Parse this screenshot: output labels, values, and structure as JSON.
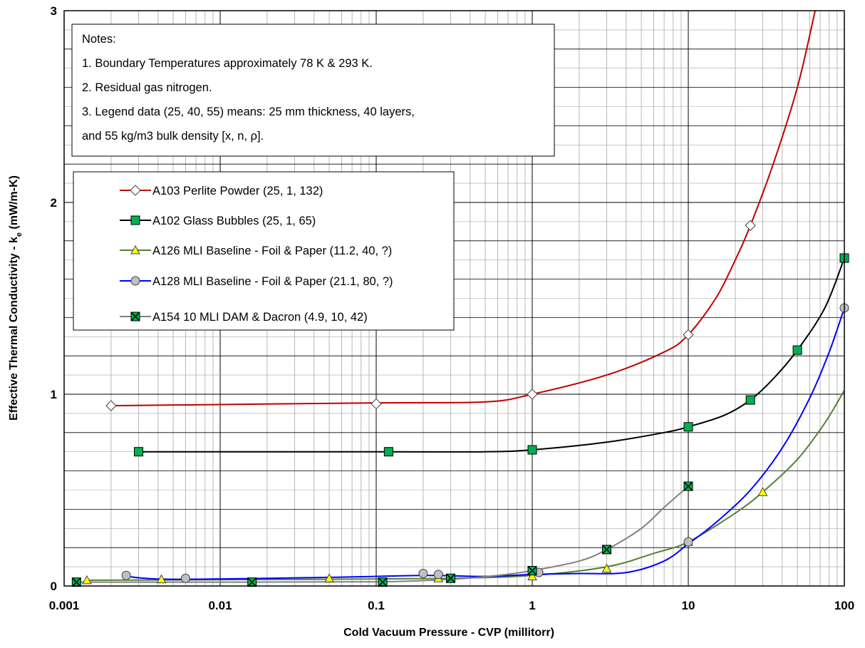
{
  "chart_data": {
    "type": "line",
    "xlabel": "Cold Vacuum Pressure - CVP (millitorr)",
    "ylabel": "Effective Thermal Conductivity - k",
    "ylabel_sub": "e",
    "ylabel_unit": " (mW/m-K)",
    "x_scale": "log",
    "xlim": [
      0.001,
      100
    ],
    "ylim": [
      0,
      3
    ],
    "x_ticks": [
      "0.001",
      "0.01",
      "0.1",
      "1",
      "10",
      "100"
    ],
    "y_ticks": [
      "0",
      "1",
      "2",
      "3"
    ],
    "grid": true,
    "legend_position": "top-left",
    "notes": [
      "Notes:",
      "1. Boundary Temperatures approximately 78 K  & 293 K.",
      "2. Residual gas nitrogen.",
      "3. Legend data (25, 40, 55) means: 25 mm  thickness, 40 layers,",
      "and 55 kg/m3 bulk density [x, n, ρ]."
    ],
    "series": [
      {
        "name": "A103 Perlite Powder (25, 1, 132)",
        "color": "#c00000",
        "marker": "diamond",
        "marker_fill": "#ffffff",
        "points": [
          [
            0.002,
            0.94
          ],
          [
            0.1,
            0.95
          ],
          [
            1,
            1.0
          ],
          [
            10,
            1.31
          ],
          [
            25,
            1.88
          ]
        ],
        "curve": [
          [
            0.002,
            0.94
          ],
          [
            0.1,
            0.955
          ],
          [
            0.5,
            0.96
          ],
          [
            1,
            1.0
          ],
          [
            3,
            1.1
          ],
          [
            7,
            1.22
          ],
          [
            10,
            1.31
          ],
          [
            15,
            1.5
          ],
          [
            20,
            1.7
          ],
          [
            25,
            1.88
          ],
          [
            35,
            2.2
          ],
          [
            50,
            2.6
          ],
          [
            65,
            3.0
          ]
        ]
      },
      {
        "name": "A102 Glass Bubbles (25, 1, 65)",
        "color": "#000000",
        "marker": "square",
        "marker_fill": "#00b050",
        "points": [
          [
            0.003,
            0.7
          ],
          [
            0.12,
            0.7
          ],
          [
            1,
            0.71
          ],
          [
            10,
            0.83
          ],
          [
            25,
            0.97
          ],
          [
            50,
            1.23
          ],
          [
            100,
            1.71
          ]
        ],
        "curve": [
          [
            0.003,
            0.7
          ],
          [
            0.12,
            0.7
          ],
          [
            0.5,
            0.7
          ],
          [
            1,
            0.71
          ],
          [
            3,
            0.75
          ],
          [
            7,
            0.8
          ],
          [
            10,
            0.83
          ],
          [
            17,
            0.89
          ],
          [
            25,
            0.97
          ],
          [
            35,
            1.08
          ],
          [
            50,
            1.23
          ],
          [
            75,
            1.45
          ],
          [
            100,
            1.71
          ]
        ]
      },
      {
        "name": "A126 MLI Baseline - Foil & Paper (11.2, 40, ?)",
        "color": "#548235",
        "marker": "triangle",
        "marker_fill": "#ffff00",
        "points": [
          [
            0.0014,
            0.03
          ],
          [
            0.0042,
            0.035
          ],
          [
            0.05,
            0.04
          ],
          [
            0.25,
            0.04
          ],
          [
            1,
            0.05
          ],
          [
            3,
            0.09
          ],
          [
            10,
            0.23
          ],
          [
            30,
            0.49
          ]
        ],
        "curve": [
          [
            0.0014,
            0.03
          ],
          [
            0.05,
            0.035
          ],
          [
            0.3,
            0.04
          ],
          [
            1,
            0.055
          ],
          [
            3,
            0.1
          ],
          [
            6,
            0.17
          ],
          [
            10,
            0.23
          ],
          [
            20,
            0.38
          ],
          [
            30,
            0.49
          ],
          [
            50,
            0.66
          ],
          [
            75,
            0.85
          ],
          [
            100,
            1.02
          ]
        ]
      },
      {
        "name": "A128 MLI Baseline - Foil & Paper (21.1, 80, ?)",
        "color": "#0000ff",
        "marker": "circle",
        "marker_fill": "#bfbfbf",
        "points": [
          [
            0.0025,
            0.055
          ],
          [
            0.006,
            0.04
          ],
          [
            0.2,
            0.065
          ],
          [
            0.25,
            0.06
          ],
          [
            1.1,
            0.07
          ],
          [
            10,
            0.23
          ],
          [
            100,
            1.45
          ]
        ],
        "curve": [
          [
            0.0025,
            0.05
          ],
          [
            0.005,
            0.035
          ],
          [
            0.05,
            0.045
          ],
          [
            0.2,
            0.055
          ],
          [
            0.5,
            0.05
          ],
          [
            1,
            0.06
          ],
          [
            2,
            0.065
          ],
          [
            4,
            0.07
          ],
          [
            7,
            0.13
          ],
          [
            10,
            0.22
          ],
          [
            15,
            0.33
          ],
          [
            25,
            0.5
          ],
          [
            40,
            0.72
          ],
          [
            60,
            0.98
          ],
          [
            80,
            1.22
          ],
          [
            100,
            1.45
          ]
        ]
      },
      {
        "name": "A154 10 MLI DAM & Dacron (4.9, 10, 42)",
        "color": "#808080",
        "marker": "square-x",
        "marker_fill": "#00b050",
        "points": [
          [
            0.0012,
            0.02
          ],
          [
            0.016,
            0.02
          ],
          [
            0.11,
            0.02
          ],
          [
            0.3,
            0.04
          ],
          [
            1,
            0.08
          ],
          [
            3,
            0.19
          ],
          [
            10,
            0.52
          ]
        ],
        "curve": [
          [
            0.0012,
            0.02
          ],
          [
            0.016,
            0.02
          ],
          [
            0.11,
            0.022
          ],
          [
            0.3,
            0.035
          ],
          [
            0.6,
            0.055
          ],
          [
            1,
            0.08
          ],
          [
            2,
            0.13
          ],
          [
            3,
            0.19
          ],
          [
            5,
            0.3
          ],
          [
            7,
            0.41
          ],
          [
            10,
            0.52
          ]
        ]
      }
    ]
  }
}
